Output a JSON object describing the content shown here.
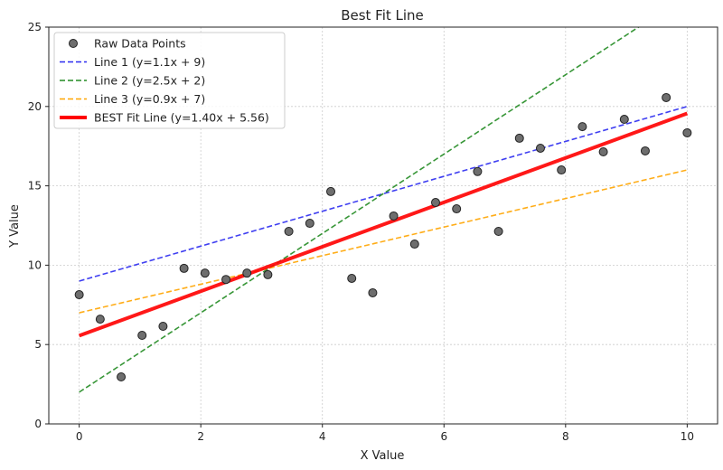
{
  "chart_data": {
    "type": "scatter",
    "title": "Best Fit Line",
    "xlabel": "X Value",
    "ylabel": "Y Value",
    "xlim": [
      -0.5,
      10.5
    ],
    "ylim": [
      0,
      25
    ],
    "xticks": [
      0,
      2,
      4,
      6,
      8,
      10
    ],
    "yticks": [
      0,
      5,
      10,
      15,
      20,
      25
    ],
    "grid": true,
    "legend_position": "top-left",
    "points": {
      "name": "Raw Data Points",
      "color": "#6e6e6e",
      "x": [
        0,
        0.345,
        0.69,
        1.034,
        1.379,
        1.724,
        2.069,
        2.414,
        2.759,
        3.103,
        3.448,
        3.793,
        4.138,
        4.483,
        4.828,
        5.172,
        5.517,
        5.862,
        6.207,
        6.552,
        6.897,
        7.241,
        7.586,
        7.931,
        8.276,
        8.621,
        8.966,
        9.31,
        9.655,
        10
      ],
      "y": [
        8.14,
        6.6,
        2.96,
        5.58,
        6.15,
        9.8,
        9.5,
        9.1,
        9.5,
        9.4,
        12.13,
        12.64,
        14.64,
        9.17,
        8.26,
        13.1,
        11.33,
        13.95,
        13.55,
        15.9,
        12.13,
        18.0,
        17.37,
        16.0,
        18.73,
        17.14,
        19.19,
        17.2,
        20.56,
        18.34
      ]
    },
    "lines": [
      {
        "name": "Line 1 (y=1.1x + 9)",
        "slope": 1.1,
        "intercept": 9,
        "color": "#2b2bf0",
        "style": "dashed"
      },
      {
        "name": "Line 2 (y=2.5x + 2)",
        "slope": 2.5,
        "intercept": 2,
        "color": "#228b22",
        "style": "dashed"
      },
      {
        "name": "Line 3 (y=0.9x + 7)",
        "slope": 0.9,
        "intercept": 7,
        "color": "#ffa500",
        "style": "dashed"
      },
      {
        "name": "BEST Fit Line (y=1.40x + 5.56)",
        "slope": 1.4,
        "intercept": 5.56,
        "color": "#ff0000",
        "style": "solid"
      }
    ]
  }
}
